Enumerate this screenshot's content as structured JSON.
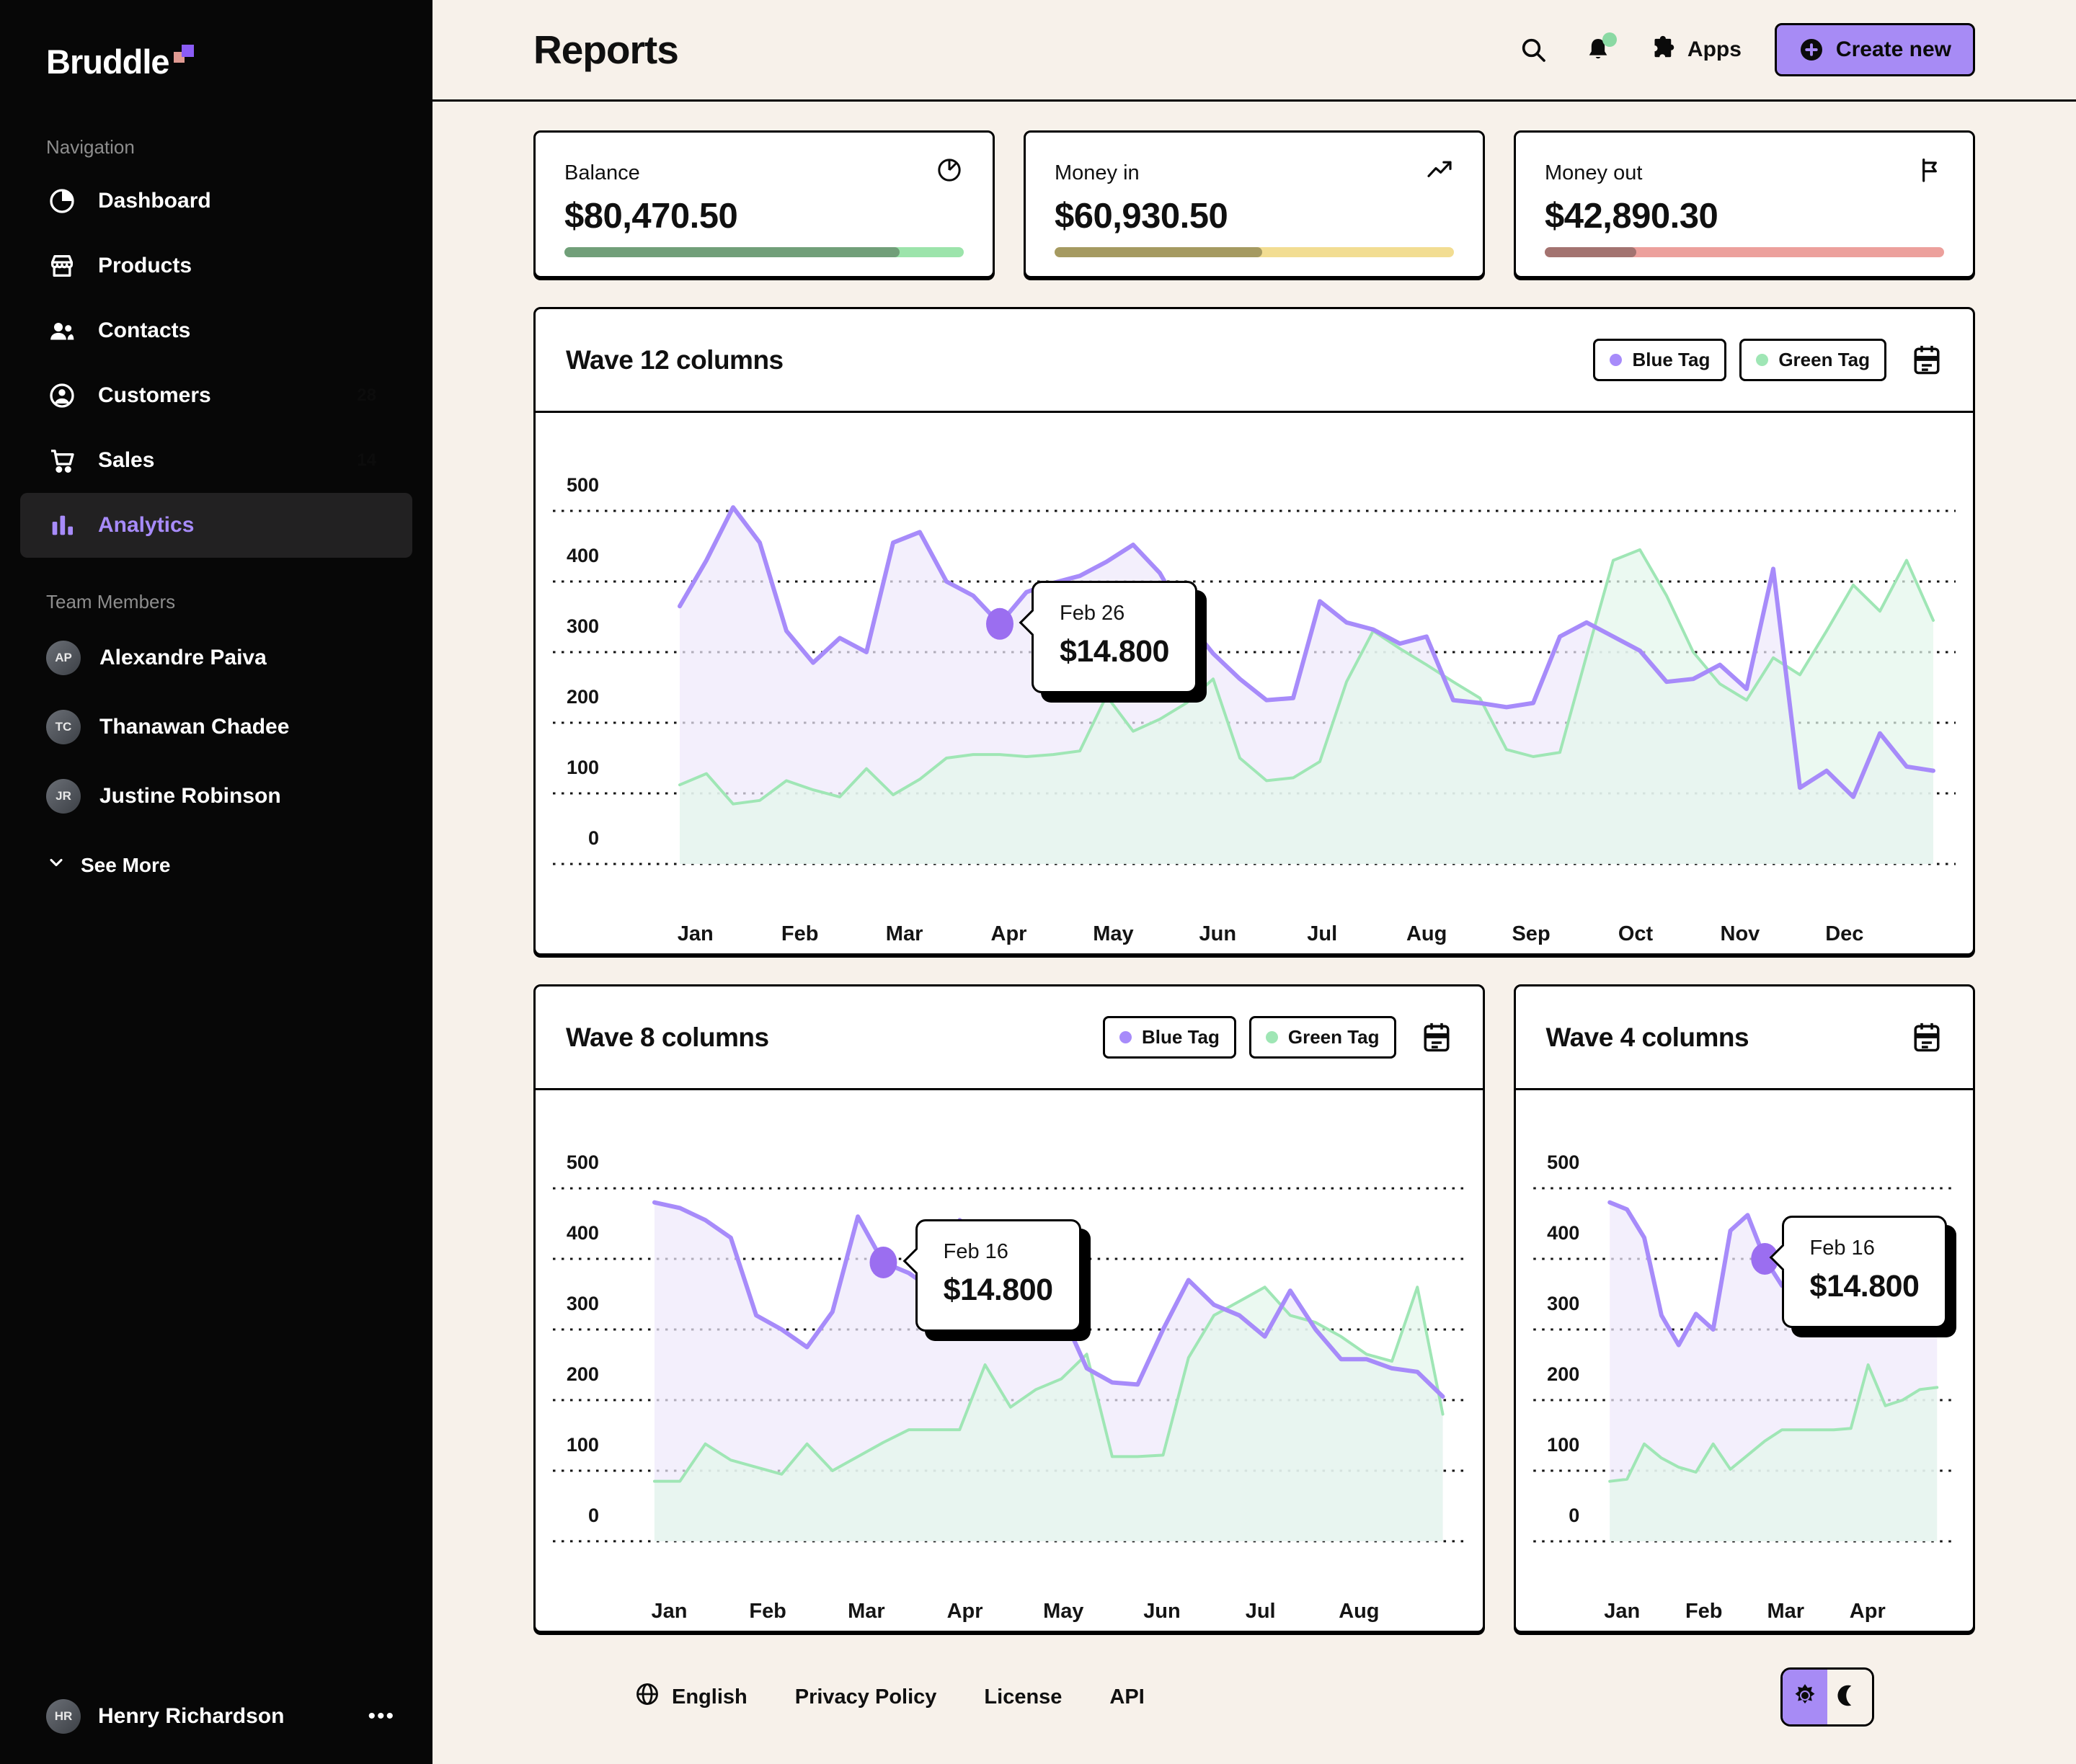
{
  "sidebar": {
    "logo": "Bruddle",
    "sections": {
      "navigation": "Navigation",
      "team": "Team Members"
    },
    "nav": [
      {
        "label": "Dashboard",
        "icon": "dashboard-icon"
      },
      {
        "label": "Products",
        "icon": "store-icon"
      },
      {
        "label": "Contacts",
        "icon": "contacts-icon"
      },
      {
        "label": "Customers",
        "icon": "customer-icon",
        "badge": "28",
        "badge_color": "#9fdcae"
      },
      {
        "label": "Sales",
        "icon": "cart-icon",
        "badge": "14",
        "badge_color": "#f1df9f"
      },
      {
        "label": "Analytics",
        "icon": "analytics-icon",
        "active": true
      }
    ],
    "team": [
      {
        "name": "Alexandre Paiva"
      },
      {
        "name": "Thanawan Chadee"
      },
      {
        "name": "Justine Robinson"
      }
    ],
    "see_more": "See More",
    "user": {
      "name": "Henry Richardson",
      "menu": "•••"
    }
  },
  "header": {
    "title": "Reports",
    "apps_label": "Apps",
    "create_button": "Create new"
  },
  "stats": [
    {
      "label": "Balance",
      "value": "$80,470.50",
      "icon": "pie-icon",
      "bar": {
        "pct": 84,
        "filled": "#719f79",
        "rest": "#9ce4ab"
      }
    },
    {
      "label": "Money in",
      "value": "$60,930.50",
      "icon": "trend-icon",
      "bar": {
        "pct": 52,
        "filled": "#a59a61",
        "rest": "#f2dd92"
      }
    },
    {
      "label": "Money out",
      "value": "$42,890.30",
      "icon": "flag-icon",
      "bar": {
        "pct": 23,
        "filled": "#a37370",
        "rest": "#eca09c"
      }
    }
  ],
  "chart_data": [
    {
      "type": "line",
      "title": "Wave 12 columns",
      "legend": [
        "Blue Tag",
        "Green Tag"
      ],
      "legend_position": "top-right",
      "grid": true,
      "ylim": [
        0,
        500
      ],
      "yticks": [
        "500",
        "400",
        "300",
        "200",
        "100",
        "0"
      ],
      "categories": [
        "Jan",
        "Feb",
        "Mar",
        "Apr",
        "May",
        "Jun",
        "Jul",
        "Aug",
        "Sep",
        "Oct",
        "Nov",
        "Dec"
      ],
      "series": [
        {
          "name": "Blue Tag",
          "color": "#a78bfa",
          "fill": "#efe9fb",
          "values": [
            365,
            430,
            505,
            455,
            330,
            285,
            320,
            300,
            455,
            470,
            400,
            380,
            340,
            385,
            398,
            408,
            428,
            452,
            412,
            345,
            298,
            262,
            232,
            235,
            372,
            342,
            332,
            312,
            322,
            232,
            228,
            222,
            228,
            322,
            342,
            322,
            302,
            258,
            262,
            282,
            248,
            418,
            108,
            132,
            95,
            185,
            138,
            132
          ]
        },
        {
          "name": "Green Tag",
          "color": "#9fe6b5",
          "fill": "#e3f7ec",
          "values": [
            112,
            128,
            85,
            90,
            118,
            105,
            95,
            135,
            98,
            120,
            150,
            155,
            155,
            152,
            155,
            160,
            238,
            188,
            205,
            228,
            262,
            150,
            118,
            122,
            145,
            258,
            330,
            305,
            282,
            258,
            235,
            162,
            152,
            158,
            295,
            430,
            445,
            380,
            300,
            255,
            232,
            292,
            268,
            330,
            395,
            358,
            430,
            345
          ]
        }
      ],
      "marker": {
        "series": 0,
        "index": 12,
        "color": "#9b6ef0"
      },
      "tooltip": {
        "date": "Feb 26",
        "value": "$14.800"
      },
      "layout": {
        "data_left": 200,
        "right_pad": 55
      }
    },
    {
      "type": "line",
      "title": "Wave 8 columns",
      "legend": [
        "Blue Tag",
        "Green Tag"
      ],
      "legend_position": "top-right",
      "grid": true,
      "ylim": [
        0,
        500
      ],
      "yticks": [
        "500",
        "400",
        "300",
        "200",
        "100",
        "0"
      ],
      "categories": [
        "Jan",
        "Feb",
        "Mar",
        "Apr",
        "May",
        "Jun",
        "Jul",
        "Aug"
      ],
      "series": [
        {
          "name": "Blue Tag",
          "color": "#a78bfa",
          "fill": "#efe9fb",
          "values": [
            480,
            472,
            455,
            430,
            320,
            300,
            275,
            325,
            460,
            395,
            380,
            355,
            455,
            430,
            375,
            340,
            325,
            245,
            225,
            222,
            300,
            370,
            335,
            320,
            290,
            355,
            300,
            258,
            258,
            245,
            240,
            205
          ]
        },
        {
          "name": "Green Tag",
          "color": "#9fe6b5",
          "fill": "#e3f7ec",
          "values": [
            85,
            85,
            138,
            115,
            105,
            95,
            138,
            100,
            120,
            140,
            158,
            158,
            158,
            250,
            190,
            215,
            230,
            265,
            120,
            120,
            122,
            260,
            320,
            340,
            360,
            320,
            310,
            290,
            265,
            255,
            360,
            180
          ]
        }
      ],
      "marker": {
        "series": 0,
        "index": 9,
        "color": "#9b6ef0"
      },
      "tooltip": {
        "date": "Feb 16",
        "value": "$14.800"
      },
      "layout": {
        "data_left": 165,
        "right_pad": 55
      }
    },
    {
      "type": "line",
      "title": "Wave 4 columns",
      "legend": [],
      "legend_position": "none",
      "grid": true,
      "ylim": [
        0,
        500
      ],
      "yticks": [
        "500",
        "400",
        "300",
        "200",
        "100",
        "0"
      ],
      "categories": [
        "Jan",
        "Feb",
        "Mar",
        "Apr"
      ],
      "series": [
        {
          "name": "Blue Tag",
          "color": "#a78bfa",
          "fill": "#efe9fb",
          "values": [
            480,
            470,
            430,
            320,
            278,
            322,
            300,
            440,
            462,
            400,
            362,
            380,
            355,
            340,
            330,
            345,
            335,
            350,
            340,
            330
          ]
        },
        {
          "name": "Green Tag",
          "color": "#9fe6b5",
          "fill": "#e3f7ec",
          "values": [
            85,
            88,
            138,
            118,
            105,
            98,
            138,
            102,
            122,
            142,
            158,
            158,
            158,
            158,
            160,
            250,
            192,
            200,
            215,
            218
          ]
        }
      ],
      "marker": {
        "series": 0,
        "index": 9,
        "color": "#9b6ef0"
      },
      "tooltip": {
        "date": "Feb 16",
        "value": "$14.800"
      },
      "layout": {
        "data_left": 130,
        "right_pad": 50
      }
    }
  ],
  "footer": {
    "links": [
      {
        "label": "English",
        "icon": "globe-icon"
      },
      {
        "label": "Privacy Policy"
      },
      {
        "label": "License"
      },
      {
        "label": "API"
      }
    ]
  }
}
